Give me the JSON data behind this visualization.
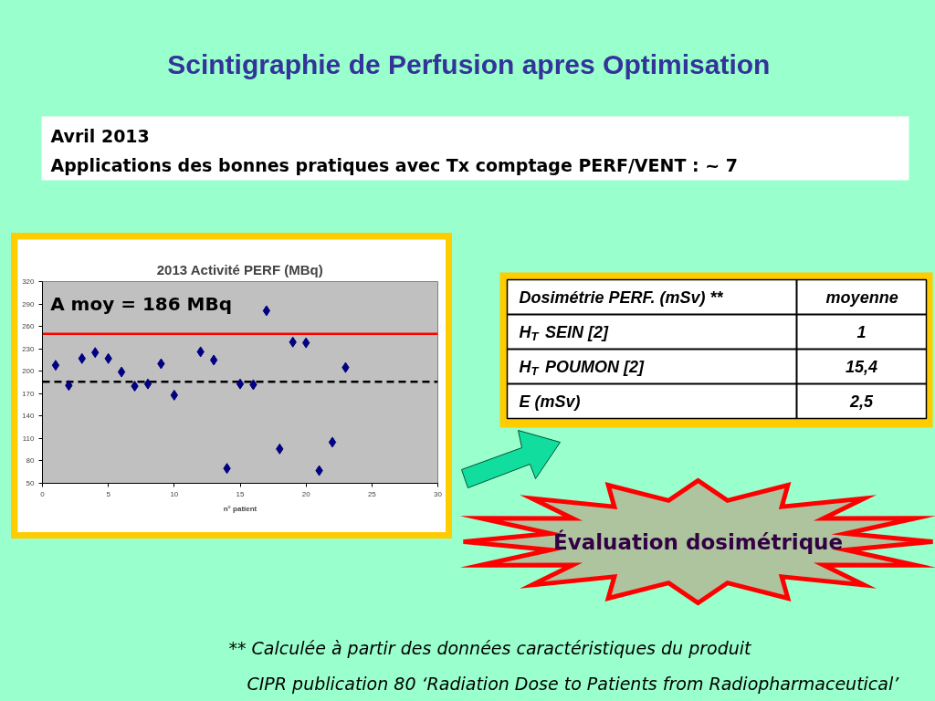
{
  "chart_data": [
    {
      "type": "other",
      "title": "Scintigraphie  de Perfusion apres Optimisation",
      "annotations": [
        "Avril 2013",
        "Applications des bonnes pratiques  avec Tx comptage PERF/VENT : ~ 7"
      ]
    },
    {
      "type": "scatter",
      "title": "2013 Activité PERF (MBq)",
      "xlabel": "n° patient",
      "x": [
        1,
        2,
        3,
        4,
        5,
        6,
        7,
        8,
        9,
        10,
        12,
        13,
        14,
        15,
        16,
        17,
        18,
        19,
        20,
        21,
        22,
        23
      ],
      "values": [
        208,
        181,
        217,
        225,
        217,
        199,
        180,
        183,
        210,
        168,
        226,
        215,
        70,
        183,
        182,
        281,
        96,
        239,
        238,
        67,
        105,
        205
      ],
      "color": "#000080",
      "marker": "diamond",
      "xlim": [
        0,
        30
      ],
      "ylim": [
        50,
        320
      ],
      "xticks": [
        0,
        5,
        10,
        15,
        20,
        25,
        30
      ],
      "yticks": [
        50,
        80,
        110,
        140,
        170,
        200,
        230,
        260,
        290,
        320
      ],
      "ref_lines": [
        {
          "axis": "y",
          "value": 250,
          "color": "#ff0000",
          "line_style": "solid"
        },
        {
          "axis": "y",
          "value": 186,
          "label": "A moy = 186 MBq",
          "color": "#000000",
          "line_style": "dashed"
        }
      ]
    },
    {
      "type": "other",
      "annotations": [
        "Dosimétrie PERF. (mSv) **",
        "moyenne"
      ],
      "categories": [
        "H$_{T}$ SEIN [2]",
        "H$_{T}$ POUMON [2]",
        "E (mSv)"
      ],
      "values": [
        1,
        15.4,
        2.5
      ],
      "value_labels": [
        "1",
        "15,4",
        "2,5"
      ]
    },
    {
      "type": "other",
      "title": "Évaluation dosimétrique",
      "annotations": [
        "** Calculée à partir des données caractéristiques du produit",
        "CIPR publication 80 ‘Radiation Dose to Patients from Radiopharmaceutical’"
      ]
    }
  ]
}
